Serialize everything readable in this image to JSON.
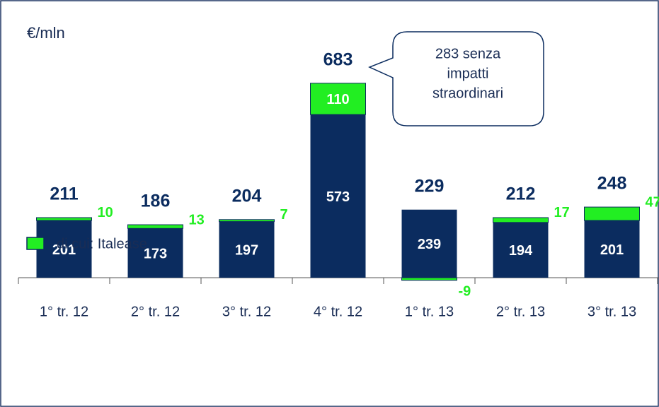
{
  "chart_data": {
    "type": "stacked_bar",
    "unit_label": "€/mln",
    "categories": [
      "1° tr. 12",
      "2° tr. 12",
      "3° tr. 12",
      "4° tr. 12",
      "1° tr. 13",
      "2° tr. 13",
      "3° tr. 13"
    ],
    "series": [
      {
        "color": "#0b2c5f",
        "values": [
          201,
          173,
          197,
          573,
          239,
          194,
          201
        ]
      },
      {
        "name": "di cui: Italease",
        "color": "#22ee22",
        "values": [
          10,
          13,
          7,
          110,
          -9,
          17,
          47
        ]
      }
    ],
    "totals": [
      211,
      186,
      204,
      683,
      229,
      212,
      248
    ],
    "annotation": {
      "lines": [
        "283 senza",
        "impatti",
        "straordinari"
      ],
      "category": 3
    },
    "legend": "bottom-left"
  }
}
